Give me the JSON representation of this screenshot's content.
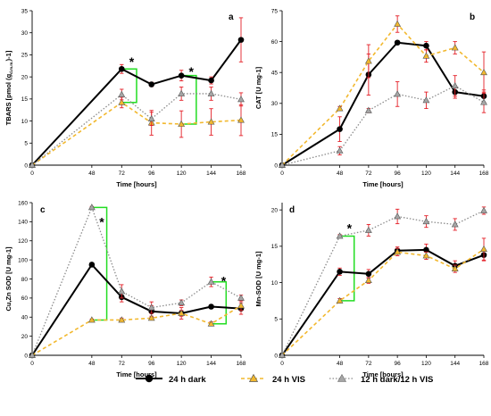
{
  "legend": [
    {
      "label": "24 h dark"
    },
    {
      "label": "24 h VIS"
    },
    {
      "label": "12 h dark/12 h VIS"
    }
  ],
  "style": {
    "dark_color": "#000000",
    "vis_color": "#f2b82e",
    "mixed_color": "#8c8c8c",
    "triangle_fill_mixed": "#a6a6a6",
    "error_color": "#e41e26",
    "bracket_color": "#22dd22"
  },
  "chart_data": [
    {
      "type": "line",
      "panel": "a",
      "xlabel": "Time [hours]",
      "ylabel": "TBARS  [pmol (g",
      "ylabel_subscript": "d.m.m.",
      "ylabel_suffix": ")-1]",
      "x_ticks": [
        0,
        48,
        72,
        96,
        120,
        144,
        168
      ],
      "y_ticks": [
        0,
        5,
        10,
        15,
        20,
        25,
        30,
        35
      ],
      "xlim": [
        0,
        168
      ],
      "ylim": [
        0,
        35
      ],
      "series": [
        {
          "name": "24 h dark",
          "x": [
            0,
            72,
            96,
            120,
            144,
            168
          ],
          "y": [
            0,
            21.8,
            18.3,
            20.3,
            19.2,
            28.4
          ],
          "err": [
            0,
            1.0,
            0.5,
            1.2,
            0.8,
            5.0
          ]
        },
        {
          "name": "24 h VIS",
          "x": [
            0,
            72,
            96,
            120,
            144,
            168
          ],
          "y": [
            0,
            14.2,
            9.6,
            9.3,
            9.8,
            10.2
          ],
          "err": [
            0,
            1.2,
            2.8,
            3.0,
            3.0,
            3.5
          ]
        },
        {
          "name": "12 h dark/12 h VIS",
          "x": [
            0,
            72,
            96,
            120,
            144,
            168
          ],
          "y": [
            0,
            16.0,
            10.5,
            16.2,
            16.2,
            14.9
          ],
          "err": [
            0,
            1.2,
            1.5,
            1.5,
            1.5,
            1.5
          ]
        }
      ],
      "annotations": [
        {
          "text": "*",
          "x": 80,
          "y": 23.5
        },
        {
          "text": "*",
          "x": 128,
          "y": 21.2
        }
      ],
      "brackets": [
        {
          "from_x": 72,
          "from_y": 21.8,
          "to_x": 84,
          "to_y": 14.2
        },
        {
          "from_x": 120,
          "from_y": 20.3,
          "to_x": 132,
          "to_y": 9.3
        }
      ]
    },
    {
      "type": "line",
      "panel": "b",
      "xlabel": "Time [hours]",
      "ylabel": "CAT [U mg-1]",
      "x_ticks": [
        0,
        48,
        72,
        96,
        120,
        144,
        168
      ],
      "y_ticks": [
        0,
        15,
        30,
        45,
        60,
        75
      ],
      "xlim": [
        0,
        168
      ],
      "ylim": [
        0,
        75
      ],
      "series": [
        {
          "name": "24 h dark",
          "x": [
            0,
            48,
            72,
            96,
            120,
            144,
            168
          ],
          "y": [
            0,
            17.5,
            44.0,
            59.5,
            58.0,
            35.5,
            33.5
          ],
          "err": [
            0,
            6.0,
            10.0,
            1.0,
            2.0,
            3.0,
            3.0
          ]
        },
        {
          "name": "24 h VIS",
          "x": [
            0,
            48,
            72,
            96,
            120,
            144,
            168
          ],
          "y": [
            0,
            27.5,
            50.5,
            68.5,
            53.0,
            57.0,
            45.0
          ],
          "err": [
            0,
            1.0,
            8.0,
            4.0,
            3.0,
            3.0,
            10.0
          ]
        },
        {
          "name": "12 h dark/12 h VIS",
          "x": [
            0,
            48,
            72,
            96,
            120,
            144,
            168
          ],
          "y": [
            0,
            7.0,
            26.5,
            34.5,
            31.5,
            38.5,
            30.5
          ],
          "err": [
            0,
            2.0,
            1.0,
            6.0,
            4.0,
            5.0,
            5.0
          ]
        }
      ],
      "annotations": [],
      "brackets": []
    },
    {
      "type": "line",
      "panel": "c",
      "xlabel": "Time [hours]",
      "ylabel": "Cu,Zn SOD [U mg-1]",
      "x_ticks": [
        0,
        48,
        72,
        96,
        120,
        144,
        168
      ],
      "y_ticks": [
        0,
        20,
        40,
        60,
        80,
        100,
        120,
        140,
        160
      ],
      "xlim": [
        0,
        168
      ],
      "ylim": [
        0,
        160
      ],
      "series": [
        {
          "name": "24 h dark",
          "x": [
            0,
            48,
            72,
            96,
            120,
            144,
            168
          ],
          "y": [
            0,
            95,
            61,
            46,
            44,
            51,
            49
          ],
          "err": [
            0,
            0,
            5,
            6,
            6,
            2,
            6
          ]
        },
        {
          "name": "24 h VIS",
          "x": [
            0,
            48,
            72,
            96,
            120,
            144,
            168
          ],
          "y": [
            0,
            37,
            37,
            39,
            44,
            33,
            52
          ],
          "err": [
            0,
            1,
            2,
            2,
            3,
            2,
            5
          ]
        },
        {
          "name": "12 h dark/12 h VIS",
          "x": [
            0,
            48,
            72,
            96,
            120,
            144,
            168
          ],
          "y": [
            0,
            155,
            67,
            50,
            55,
            77,
            60
          ],
          "err": [
            0,
            1,
            7,
            6,
            3,
            5,
            3
          ]
        }
      ],
      "annotations": [
        {
          "text": "*",
          "x": 56,
          "y": 140
        },
        {
          "text": "*",
          "x": 154,
          "y": 78
        }
      ],
      "brackets": [
        {
          "from_x": 48,
          "from_y": 155,
          "to_x": 60,
          "to_y": 37
        },
        {
          "from_x": 144,
          "from_y": 77,
          "to_x": 156,
          "to_y": 33
        }
      ]
    },
    {
      "type": "line",
      "panel": "d",
      "xlabel": "Time [hours]",
      "ylabel": "Mn-SOD [U mg-1]",
      "x_ticks": [
        0,
        48,
        72,
        96,
        120,
        144,
        168
      ],
      "y_ticks": [
        0,
        5,
        10,
        15,
        20
      ],
      "xlim": [
        0,
        168
      ],
      "ylim": [
        0,
        21
      ],
      "series": [
        {
          "name": "24 h dark",
          "x": [
            0,
            48,
            72,
            96,
            120,
            144,
            168
          ],
          "y": [
            0,
            11.5,
            11.2,
            14.4,
            14.5,
            12.3,
            13.8
          ],
          "err": [
            0,
            0.5,
            0.6,
            0.5,
            0.8,
            0.7,
            0.8
          ]
        },
        {
          "name": "24 h VIS",
          "x": [
            0,
            48,
            72,
            96,
            120,
            144,
            168
          ],
          "y": [
            0,
            7.5,
            10.3,
            14.2,
            13.7,
            11.9,
            14.6
          ],
          "err": [
            0,
            0.3,
            0.4,
            0.5,
            0.5,
            0.5,
            1.5
          ]
        },
        {
          "name": "12 h dark/12 h VIS",
          "x": [
            0,
            48,
            72,
            96,
            120,
            144,
            168
          ],
          "y": [
            0,
            16.4,
            17.2,
            19.1,
            18.4,
            18.0,
            19.9
          ],
          "err": [
            0,
            0.2,
            0.8,
            1.0,
            0.8,
            0.8,
            0.5
          ]
        }
      ],
      "annotations": [
        {
          "text": "*",
          "x": 56,
          "y": 17.5
        }
      ],
      "brackets": [
        {
          "from_x": 48,
          "from_y": 16.4,
          "to_x": 60,
          "to_y": 7.5
        }
      ]
    }
  ]
}
